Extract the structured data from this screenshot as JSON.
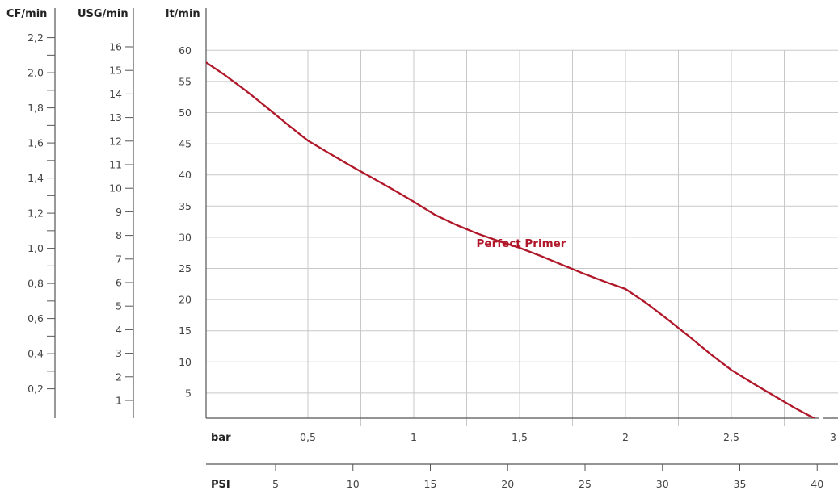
{
  "chart_data": {
    "type": "line",
    "title": "",
    "grid": true,
    "axes": {
      "cf": {
        "label": "CF/min",
        "major_ticks": [
          0.2,
          0.4,
          0.6,
          0.8,
          1.0,
          1.2,
          1.4,
          1.6,
          1.8,
          2.0,
          2.2
        ],
        "major_labels": [
          "0,2",
          "0,4",
          "0,6",
          "0,8",
          "1,0",
          "1,2",
          "1,4",
          "1,6",
          "1,8",
          "2,0",
          "2,2"
        ]
      },
      "usg": {
        "label": "USG/min",
        "ticks": [
          1,
          2,
          3,
          4,
          5,
          6,
          7,
          8,
          9,
          10,
          11,
          12,
          13,
          14,
          15,
          16
        ],
        "tick_labels": [
          "1",
          "2",
          "3",
          "4",
          "5",
          "6",
          "7",
          "8",
          "9",
          "10",
          "11",
          "12",
          "13",
          "14",
          "15",
          "16"
        ]
      },
      "lt": {
        "label": "lt/min",
        "ylim": [
          0,
          60
        ],
        "ticks": [
          5,
          10,
          15,
          20,
          25,
          30,
          35,
          40,
          45,
          50,
          55,
          60
        ],
        "tick_labels": [
          "5",
          "10",
          "15",
          "20",
          "25",
          "30",
          "35",
          "40",
          "45",
          "50",
          "55",
          "60"
        ]
      },
      "bar": {
        "label": "bar",
        "xlim": [
          0,
          3
        ],
        "ticks": [
          0.5,
          1,
          1.5,
          2,
          2.5,
          3
        ],
        "tick_labels": [
          "0,5",
          "1",
          "1,5",
          "2",
          "2,5",
          "3"
        ]
      },
      "psi": {
        "label": "PSI",
        "ticks": [
          5,
          10,
          15,
          20,
          25,
          30,
          35,
          40
        ],
        "tick_labels": [
          "5",
          "10",
          "15",
          "20",
          "25",
          "30",
          "35",
          "40"
        ]
      }
    },
    "series": [
      {
        "name": "Perfect Primer",
        "color": "#b0182a",
        "x_unit": "bar",
        "y_unit": "lt/min",
        "x": [
          0,
          0.1,
          0.2,
          0.3,
          0.4,
          0.5,
          0.6,
          0.7,
          0.8,
          0.9,
          1.0,
          1.1,
          1.2,
          1.3,
          1.4,
          1.5,
          1.6,
          1.7,
          1.8,
          1.9,
          2.0,
          2.1,
          2.2,
          2.3,
          2.4,
          2.5,
          2.6,
          2.7,
          2.8,
          2.9,
          3.0
        ],
        "y": [
          58.5,
          56.2,
          53.7,
          51.0,
          48.2,
          45.5,
          43.5,
          41.5,
          39.6,
          37.7,
          35.7,
          33.6,
          32.0,
          30.6,
          29.4,
          28.3,
          27.0,
          25.6,
          24.2,
          22.9,
          21.7,
          19.4,
          16.8,
          14.1,
          11.3,
          8.7,
          6.6,
          4.6,
          2.6,
          0.8,
          -1.0
        ]
      }
    ]
  }
}
